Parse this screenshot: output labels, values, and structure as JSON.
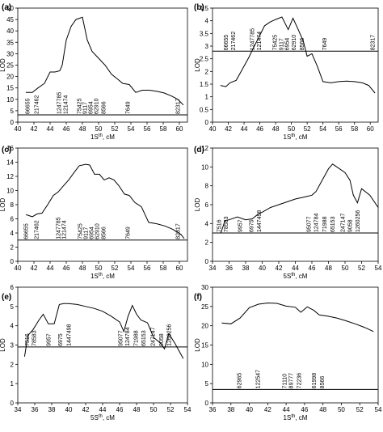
{
  "chart_data": [
    {
      "type": "line",
      "panel": "(a)",
      "ylabel": "LOD",
      "xlabel_main": "1S",
      "xlabel_sup": "th",
      "xlabel_unit": ", cM",
      "xlim": [
        40,
        61
      ],
      "ylim": [
        0,
        50
      ],
      "xticks": [
        "40",
        "42",
        "44",
        "46",
        "48",
        "50",
        "52",
        "54",
        "56",
        "58",
        "60"
      ],
      "yticks": [
        "0",
        "5",
        "10",
        "15",
        "20",
        "25",
        "30",
        "35",
        "40",
        "45",
        "50"
      ],
      "threshold": 3.2,
      "x": [
        41.0,
        41.8,
        42.5,
        43.3,
        44.0,
        44.6,
        45.2,
        45.5,
        46.0,
        46.6,
        47.2,
        48.0,
        48.6,
        49.2,
        50.0,
        50.8,
        51.6,
        52.3,
        53.0,
        53.8,
        54.6,
        55.4,
        56.3,
        57.2,
        58.1,
        59.0,
        59.8,
        60.5
      ],
      "y": [
        13,
        13,
        15,
        17,
        22,
        22,
        22.5,
        25,
        36,
        42,
        45,
        46,
        36,
        31,
        28,
        25,
        21,
        19,
        17,
        16.5,
        13,
        14,
        14,
        13.5,
        12.8,
        11.5,
        10,
        7.5
      ],
      "markers": [
        {
          "label": "66655",
          "x": 41.2
        },
        {
          "label": "217462",
          "x": 42.3
        },
        {
          "label": "1247785",
          "x": 45.1
        },
        {
          "label": "121474",
          "x": 45.9
        },
        {
          "label": "75425",
          "x": 47.6
        },
        {
          "label": "9117",
          "x": 48.3
        },
        {
          "label": "6954",
          "x": 49.0
        },
        {
          "label": "62910",
          "x": 49.7
        },
        {
          "label": "8566",
          "x": 50.6
        },
        {
          "label": "7649",
          "x": 53.6
        },
        {
          "label": "82317",
          "x": 59.8
        }
      ]
    },
    {
      "type": "line",
      "panel": "(b)",
      "ylabel": "LOD",
      "xlabel_main": "1S",
      "xlabel_sup": "th",
      "xlabel_unit": ", cM",
      "xlim": [
        40,
        61
      ],
      "ylim": [
        0,
        4.5
      ],
      "xticks": [
        "40",
        "42",
        "44",
        "46",
        "48",
        "50",
        "52",
        "54",
        "56",
        "58",
        "60"
      ],
      "yticks": [
        "0",
        "0.5",
        "1",
        "1.5",
        "2",
        "2.5",
        "3",
        "3.5",
        "4",
        "4.5"
      ],
      "threshold": 2.8,
      "x": [
        41.0,
        41.7,
        42.2,
        43.0,
        43.8,
        44.6,
        45.3,
        45.8,
        46.6,
        47.3,
        48.0,
        48.8,
        49.6,
        50.2,
        50.8,
        51.5,
        52.0,
        52.6,
        53.3,
        54.0,
        55.0,
        56.0,
        57.0,
        58.0,
        59.0,
        59.8,
        60.6
      ],
      "y": [
        1.45,
        1.4,
        1.55,
        1.65,
        2.1,
        2.55,
        3.0,
        3.3,
        3.8,
        3.95,
        4.05,
        4.15,
        3.65,
        4.1,
        3.7,
        3.2,
        2.6,
        2.7,
        2.2,
        1.6,
        1.55,
        1.6,
        1.62,
        1.6,
        1.55,
        1.45,
        1.15
      ],
      "markers": [
        {
          "label": "66655",
          "x": 41.7
        },
        {
          "label": "217462",
          "x": 42.6
        },
        {
          "label": "1247785",
          "x": 45.0
        },
        {
          "label": "121474",
          "x": 45.9
        },
        {
          "label": "75425",
          "x": 47.9
        },
        {
          "label": "9117",
          "x": 48.7
        },
        {
          "label": "6954",
          "x": 49.4
        },
        {
          "label": "62910",
          "x": 50.3
        },
        {
          "label": "8566",
          "x": 51.3
        },
        {
          "label": "7649",
          "x": 54.2
        },
        {
          "label": "82317",
          "x": 60.3
        }
      ]
    },
    {
      "type": "line",
      "panel": "(c)",
      "ylabel": "LOD",
      "xlabel_main": "1S",
      "xlabel_sup": "th",
      "xlabel_unit": ", cM",
      "xlim": [
        40,
        61
      ],
      "ylim": [
        0,
        16
      ],
      "xticks": [
        "40",
        "42",
        "44",
        "46",
        "48",
        "50",
        "52",
        "54",
        "56",
        "58",
        "60"
      ],
      "yticks": [
        "0",
        "2",
        "4",
        "6",
        "8",
        "10",
        "12",
        "14",
        "16"
      ],
      "threshold": 3.0,
      "x": [
        41.0,
        41.8,
        42.4,
        43.0,
        43.7,
        44.4,
        45.0,
        45.6,
        46.3,
        47.0,
        47.6,
        48.4,
        48.9,
        49.5,
        50.1,
        50.7,
        51.3,
        51.9,
        52.5,
        53.2,
        53.8,
        54.5,
        55.3,
        56.2,
        57.2,
        58.2,
        59.2,
        60.2,
        60.6
      ],
      "y": [
        6.6,
        6.3,
        6.7,
        6.8,
        8.0,
        9.3,
        9.8,
        10.6,
        11.5,
        12.6,
        13.5,
        13.7,
        13.6,
        12.3,
        12.3,
        11.5,
        11.8,
        11.5,
        10.7,
        9.5,
        9.3,
        8.3,
        7.7,
        5.5,
        5.3,
        5.0,
        4.5,
        3.8,
        3.2
      ],
      "markers": [
        {
          "label": "66655",
          "x": 41.0
        },
        {
          "label": "217462",
          "x": 42.3
        },
        {
          "label": "1247785",
          "x": 45.0
        },
        {
          "label": "121474",
          "x": 45.7
        },
        {
          "label": "75425",
          "x": 47.7
        },
        {
          "label": "9117",
          "x": 48.4
        },
        {
          "label": "6954",
          "x": 49.1
        },
        {
          "label": "62910",
          "x": 49.8
        },
        {
          "label": "8566",
          "x": 50.6
        },
        {
          "label": "7649",
          "x": 53.6
        },
        {
          "label": "82317",
          "x": 59.8
        }
      ]
    },
    {
      "type": "line",
      "panel": "(d)",
      "ylabel": "LOD",
      "xlabel_main": "5S",
      "xlabel_sup": "th",
      "xlabel_unit": ", cM",
      "xlim": [
        34,
        54
      ],
      "ylim": [
        0,
        12
      ],
      "xticks": [
        "34",
        "36",
        "38",
        "40",
        "42",
        "44",
        "46",
        "48",
        "50",
        "52",
        "54"
      ],
      "yticks": [
        "0",
        "2",
        "4",
        "6",
        "8",
        "10",
        "12"
      ],
      "threshold": 3.0,
      "x": [
        35.0,
        35.5,
        36.0,
        37.0,
        38.0,
        38.8,
        39.5,
        40.0,
        41.0,
        42.0,
        43.0,
        44.0,
        45.0,
        45.5,
        46.0,
        46.5,
        47.0,
        47.5,
        48.0,
        48.5,
        49.0,
        50.0,
        50.6,
        51.0,
        51.5,
        52.0,
        53.0,
        54.0
      ],
      "y": [
        3.0,
        4.3,
        4.4,
        4.7,
        4.4,
        4.5,
        5.0,
        5.2,
        5.7,
        6.0,
        6.3,
        6.6,
        6.8,
        6.9,
        7.0,
        7.4,
        8.2,
        9.0,
        9.8,
        10.3,
        10.0,
        9.4,
        8.6,
        7.0,
        6.2,
        7.7,
        7.0,
        5.7
      ],
      "markers": [
        {
          "label": "7516",
          "x": 34.8
        },
        {
          "label": "78583",
          "x": 35.6
        },
        {
          "label": "9957",
          "x": 37.3
        },
        {
          "label": "6975",
          "x": 38.7
        },
        {
          "label": "1447498",
          "x": 39.6
        },
        {
          "label": "95077",
          "x": 45.6
        },
        {
          "label": "124784",
          "x": 46.5
        },
        {
          "label": "71988",
          "x": 47.5
        },
        {
          "label": "65153",
          "x": 48.5
        },
        {
          "label": "247147",
          "x": 49.7
        },
        {
          "label": "9058",
          "x": 50.6
        },
        {
          "label": "1260256",
          "x": 51.5
        }
      ]
    },
    {
      "type": "line",
      "panel": "(e)",
      "ylabel": "LOD",
      "xlabel_main": "5S",
      "xlabel_sup": "th",
      "xlabel_unit": ", cM",
      "xlim": [
        34,
        54
      ],
      "ylim": [
        0,
        6
      ],
      "xticks": [
        "34",
        "36",
        "38",
        "40",
        "42",
        "44",
        "46",
        "48",
        "50",
        "52",
        "54"
      ],
      "yticks": [
        "0",
        "1",
        "2",
        "3",
        "4",
        "5",
        "6"
      ],
      "threshold": 2.9,
      "x": [
        34.8,
        35.2,
        35.8,
        36.5,
        37.0,
        37.6,
        38.3,
        38.9,
        39.4,
        40.0,
        41.0,
        42.0,
        43.0,
        44.0,
        45.0,
        46.0,
        46.5,
        47.0,
        47.5,
        48.0,
        48.5,
        49.3,
        50.0,
        50.8,
        51.3,
        51.8,
        52.5,
        53.5
      ],
      "y": [
        2.4,
        3.5,
        3.8,
        4.3,
        4.6,
        4.1,
        4.1,
        5.1,
        5.15,
        5.15,
        5.1,
        5.0,
        4.9,
        4.75,
        4.5,
        4.2,
        3.7,
        4.5,
        5.05,
        4.6,
        4.3,
        4.15,
        3.4,
        3.1,
        2.8,
        3.6,
        3.1,
        2.3
      ],
      "markers": [
        {
          "label": "7516",
          "x": 35.1
        },
        {
          "label": "78583",
          "x": 35.9
        },
        {
          "label": "9957",
          "x": 37.6
        },
        {
          "label": "6975",
          "x": 39.0
        },
        {
          "label": "1447498",
          "x": 40.0
        },
        {
          "label": "95077",
          "x": 46.1
        },
        {
          "label": "124784",
          "x": 46.9
        },
        {
          "label": "71988",
          "x": 47.9
        },
        {
          "label": "65153",
          "x": 48.8
        },
        {
          "label": "247147",
          "x": 49.9
        },
        {
          "label": "9058",
          "x": 50.9
        },
        {
          "label": "1260256",
          "x": 51.8
        }
      ]
    },
    {
      "type": "line",
      "panel": "(f)",
      "ylabel": "LOD",
      "xlabel_main": "1S",
      "xlabel_sup": "th",
      "xlabel_unit": ", cM",
      "xlim": [
        36,
        54
      ],
      "ylim": [
        0,
        30
      ],
      "xticks": [
        "36",
        "38",
        "40",
        "42",
        "44",
        "46",
        "48",
        "50",
        "52",
        "54"
      ],
      "yticks": [
        "0",
        "5",
        "10",
        "15",
        "20",
        "25",
        "30"
      ],
      "threshold": 3.5,
      "x": [
        37.0,
        38.0,
        39.0,
        40.0,
        41.0,
        42.0,
        43.0,
        44.0,
        45.0,
        45.6,
        46.3,
        47.0,
        47.6,
        48.5,
        49.5,
        50.5,
        51.5,
        52.5,
        53.5
      ],
      "y": [
        20.7,
        20.5,
        22.0,
        24.7,
        25.6,
        25.9,
        25.8,
        25.1,
        24.8,
        23.5,
        24.9,
        24.0,
        22.8,
        22.5,
        22.0,
        21.3,
        20.5,
        19.6,
        18.5
      ],
      "markers": [
        {
          "label": "62965",
          "x": 38.9
        },
        {
          "label": "122547",
          "x": 40.9
        },
        {
          "label": "71110",
          "x": 43.8
        },
        {
          "label": "89777",
          "x": 44.5
        },
        {
          "label": "72236",
          "x": 45.4
        },
        {
          "label": "61998",
          "x": 47.0
        },
        {
          "label": "8566",
          "x": 47.9
        }
      ]
    }
  ]
}
